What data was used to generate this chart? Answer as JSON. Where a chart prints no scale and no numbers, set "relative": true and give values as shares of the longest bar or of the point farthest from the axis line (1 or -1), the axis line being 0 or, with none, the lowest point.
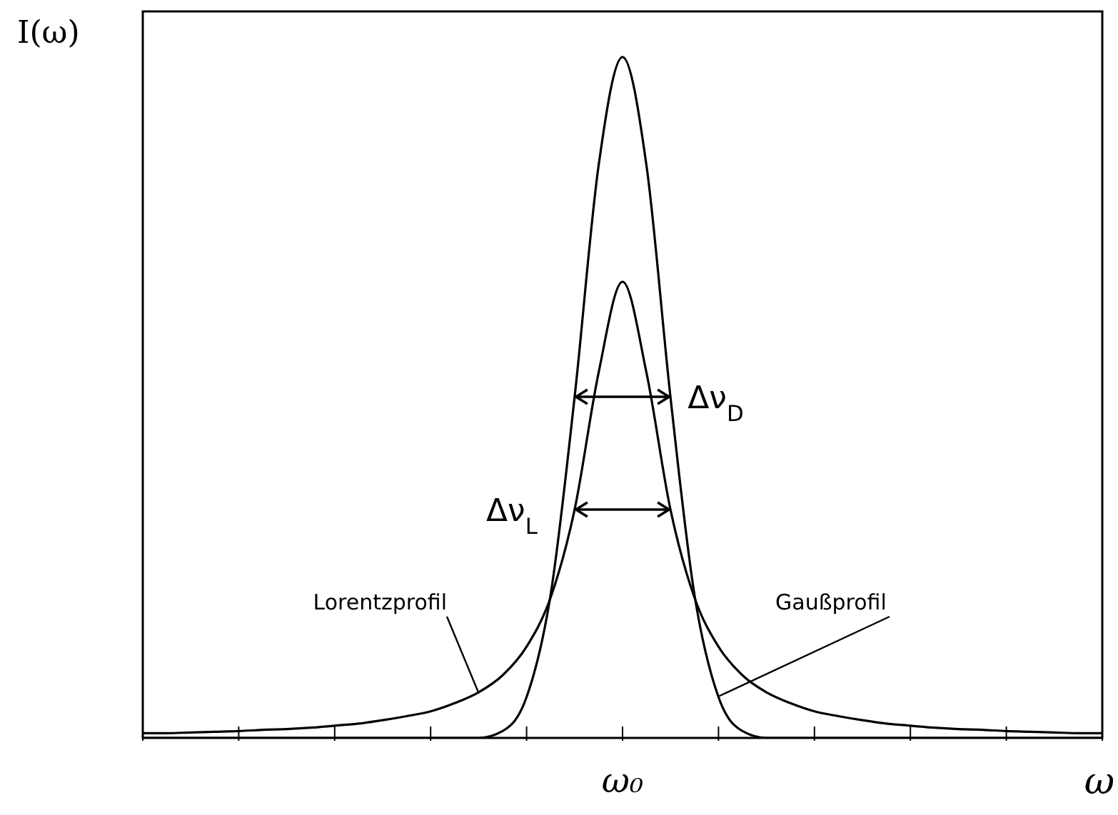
{
  "chart_data": {
    "type": "line",
    "relative": true,
    "xlabel": "ω",
    "ylabel": "I(ω)",
    "categories": [
      null,
      null,
      null,
      null,
      null,
      null,
      null,
      null,
      null,
      null,
      null,
      null,
      null,
      null,
      null,
      null,
      null,
      null,
      null,
      null,
      null,
      null,
      null,
      null,
      null,
      null,
      null,
      null,
      null,
      null,
      null,
      null,
      null,
      null,
      null,
      null,
      null,
      null,
      null,
      null,
      null
    ],
    "series": [
      {
        "color": "#000000",
        "values": [
          0.007,
          0.007,
          0.008,
          0.009,
          0.01,
          0.012,
          0.013,
          0.015,
          0.018,
          0.021,
          0.026,
          0.032,
          0.039,
          0.051,
          0.067,
          0.092,
          0.134,
          0.206,
          0.335,
          0.536,
          0.67,
          0.536,
          0.335,
          0.206,
          0.134,
          0.092,
          0.067,
          0.051,
          0.039,
          0.032,
          0.026,
          0.021,
          0.018,
          0.015,
          0.013,
          0.012,
          0.01,
          0.009,
          0.008,
          0.007,
          0.007
        ]
      },
      {
        "color": "#000000",
        "values": [
          0,
          0,
          0,
          0,
          0,
          0,
          0,
          0,
          0,
          0,
          0,
          0,
          0,
          0,
          0,
          0.01,
          0.06,
          0.21,
          0.5,
          0.84,
          1,
          0.84,
          0.5,
          0.21,
          0.06,
          0.01,
          0,
          0,
          0,
          0,
          0,
          0,
          0,
          0,
          0,
          0,
          0,
          0,
          0,
          0,
          0
        ]
      }
    ],
    "annotations": [
      "Δν$_{D}$",
      "Δν$_{L}$",
      "Lorentzprofil",
      "Gaußprofil",
      "ω₀"
    ],
    "grid": false,
    "marker": "none",
    "line_style": "solid"
  }
}
